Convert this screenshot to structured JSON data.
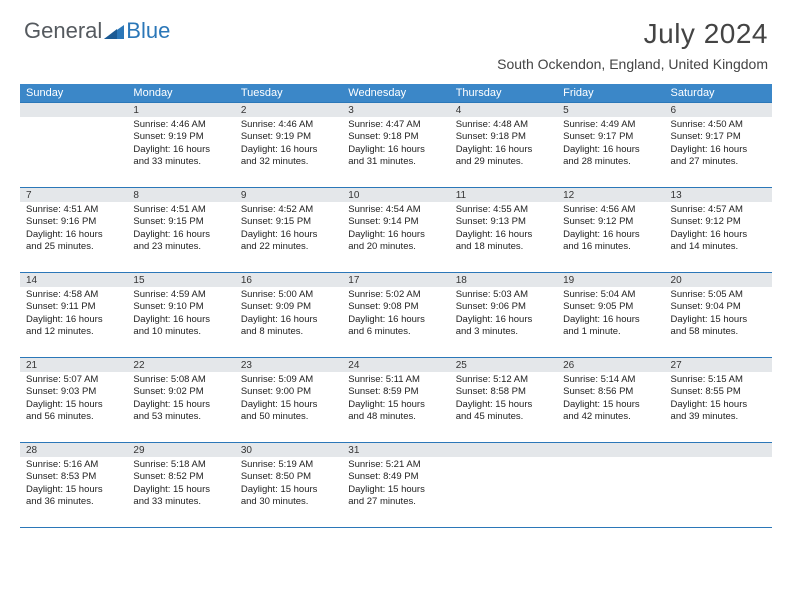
{
  "brand": {
    "general": "General",
    "blue": "Blue"
  },
  "title": "July 2024",
  "location": "South Ockendon, England, United Kingdom",
  "daysOfWeek": [
    "Sunday",
    "Monday",
    "Tuesday",
    "Wednesday",
    "Thursday",
    "Friday",
    "Saturday"
  ],
  "colors": {
    "headerBar": "#3b87c8",
    "dayBand": "#e4e7ea",
    "rule": "#2b77b8",
    "text": "#222222",
    "titleText": "#444444"
  },
  "weeks": [
    [
      {
        "n": "",
        "sr": "",
        "ss": "",
        "d1": "",
        "d2": ""
      },
      {
        "n": "1",
        "sr": "Sunrise: 4:46 AM",
        "ss": "Sunset: 9:19 PM",
        "d1": "Daylight: 16 hours",
        "d2": "and 33 minutes."
      },
      {
        "n": "2",
        "sr": "Sunrise: 4:46 AM",
        "ss": "Sunset: 9:19 PM",
        "d1": "Daylight: 16 hours",
        "d2": "and 32 minutes."
      },
      {
        "n": "3",
        "sr": "Sunrise: 4:47 AM",
        "ss": "Sunset: 9:18 PM",
        "d1": "Daylight: 16 hours",
        "d2": "and 31 minutes."
      },
      {
        "n": "4",
        "sr": "Sunrise: 4:48 AM",
        "ss": "Sunset: 9:18 PM",
        "d1": "Daylight: 16 hours",
        "d2": "and 29 minutes."
      },
      {
        "n": "5",
        "sr": "Sunrise: 4:49 AM",
        "ss": "Sunset: 9:17 PM",
        "d1": "Daylight: 16 hours",
        "d2": "and 28 minutes."
      },
      {
        "n": "6",
        "sr": "Sunrise: 4:50 AM",
        "ss": "Sunset: 9:17 PM",
        "d1": "Daylight: 16 hours",
        "d2": "and 27 minutes."
      }
    ],
    [
      {
        "n": "7",
        "sr": "Sunrise: 4:51 AM",
        "ss": "Sunset: 9:16 PM",
        "d1": "Daylight: 16 hours",
        "d2": "and 25 minutes."
      },
      {
        "n": "8",
        "sr": "Sunrise: 4:51 AM",
        "ss": "Sunset: 9:15 PM",
        "d1": "Daylight: 16 hours",
        "d2": "and 23 minutes."
      },
      {
        "n": "9",
        "sr": "Sunrise: 4:52 AM",
        "ss": "Sunset: 9:15 PM",
        "d1": "Daylight: 16 hours",
        "d2": "and 22 minutes."
      },
      {
        "n": "10",
        "sr": "Sunrise: 4:54 AM",
        "ss": "Sunset: 9:14 PM",
        "d1": "Daylight: 16 hours",
        "d2": "and 20 minutes."
      },
      {
        "n": "11",
        "sr": "Sunrise: 4:55 AM",
        "ss": "Sunset: 9:13 PM",
        "d1": "Daylight: 16 hours",
        "d2": "and 18 minutes."
      },
      {
        "n": "12",
        "sr": "Sunrise: 4:56 AM",
        "ss": "Sunset: 9:12 PM",
        "d1": "Daylight: 16 hours",
        "d2": "and 16 minutes."
      },
      {
        "n": "13",
        "sr": "Sunrise: 4:57 AM",
        "ss": "Sunset: 9:12 PM",
        "d1": "Daylight: 16 hours",
        "d2": "and 14 minutes."
      }
    ],
    [
      {
        "n": "14",
        "sr": "Sunrise: 4:58 AM",
        "ss": "Sunset: 9:11 PM",
        "d1": "Daylight: 16 hours",
        "d2": "and 12 minutes."
      },
      {
        "n": "15",
        "sr": "Sunrise: 4:59 AM",
        "ss": "Sunset: 9:10 PM",
        "d1": "Daylight: 16 hours",
        "d2": "and 10 minutes."
      },
      {
        "n": "16",
        "sr": "Sunrise: 5:00 AM",
        "ss": "Sunset: 9:09 PM",
        "d1": "Daylight: 16 hours",
        "d2": "and 8 minutes."
      },
      {
        "n": "17",
        "sr": "Sunrise: 5:02 AM",
        "ss": "Sunset: 9:08 PM",
        "d1": "Daylight: 16 hours",
        "d2": "and 6 minutes."
      },
      {
        "n": "18",
        "sr": "Sunrise: 5:03 AM",
        "ss": "Sunset: 9:06 PM",
        "d1": "Daylight: 16 hours",
        "d2": "and 3 minutes."
      },
      {
        "n": "19",
        "sr": "Sunrise: 5:04 AM",
        "ss": "Sunset: 9:05 PM",
        "d1": "Daylight: 16 hours",
        "d2": "and 1 minute."
      },
      {
        "n": "20",
        "sr": "Sunrise: 5:05 AM",
        "ss": "Sunset: 9:04 PM",
        "d1": "Daylight: 15 hours",
        "d2": "and 58 minutes."
      }
    ],
    [
      {
        "n": "21",
        "sr": "Sunrise: 5:07 AM",
        "ss": "Sunset: 9:03 PM",
        "d1": "Daylight: 15 hours",
        "d2": "and 56 minutes."
      },
      {
        "n": "22",
        "sr": "Sunrise: 5:08 AM",
        "ss": "Sunset: 9:02 PM",
        "d1": "Daylight: 15 hours",
        "d2": "and 53 minutes."
      },
      {
        "n": "23",
        "sr": "Sunrise: 5:09 AM",
        "ss": "Sunset: 9:00 PM",
        "d1": "Daylight: 15 hours",
        "d2": "and 50 minutes."
      },
      {
        "n": "24",
        "sr": "Sunrise: 5:11 AM",
        "ss": "Sunset: 8:59 PM",
        "d1": "Daylight: 15 hours",
        "d2": "and 48 minutes."
      },
      {
        "n": "25",
        "sr": "Sunrise: 5:12 AM",
        "ss": "Sunset: 8:58 PM",
        "d1": "Daylight: 15 hours",
        "d2": "and 45 minutes."
      },
      {
        "n": "26",
        "sr": "Sunrise: 5:14 AM",
        "ss": "Sunset: 8:56 PM",
        "d1": "Daylight: 15 hours",
        "d2": "and 42 minutes."
      },
      {
        "n": "27",
        "sr": "Sunrise: 5:15 AM",
        "ss": "Sunset: 8:55 PM",
        "d1": "Daylight: 15 hours",
        "d2": "and 39 minutes."
      }
    ],
    [
      {
        "n": "28",
        "sr": "Sunrise: 5:16 AM",
        "ss": "Sunset: 8:53 PM",
        "d1": "Daylight: 15 hours",
        "d2": "and 36 minutes."
      },
      {
        "n": "29",
        "sr": "Sunrise: 5:18 AM",
        "ss": "Sunset: 8:52 PM",
        "d1": "Daylight: 15 hours",
        "d2": "and 33 minutes."
      },
      {
        "n": "30",
        "sr": "Sunrise: 5:19 AM",
        "ss": "Sunset: 8:50 PM",
        "d1": "Daylight: 15 hours",
        "d2": "and 30 minutes."
      },
      {
        "n": "31",
        "sr": "Sunrise: 5:21 AM",
        "ss": "Sunset: 8:49 PM",
        "d1": "Daylight: 15 hours",
        "d2": "and 27 minutes."
      },
      {
        "n": "",
        "sr": "",
        "ss": "",
        "d1": "",
        "d2": ""
      },
      {
        "n": "",
        "sr": "",
        "ss": "",
        "d1": "",
        "d2": ""
      },
      {
        "n": "",
        "sr": "",
        "ss": "",
        "d1": "",
        "d2": ""
      }
    ]
  ]
}
